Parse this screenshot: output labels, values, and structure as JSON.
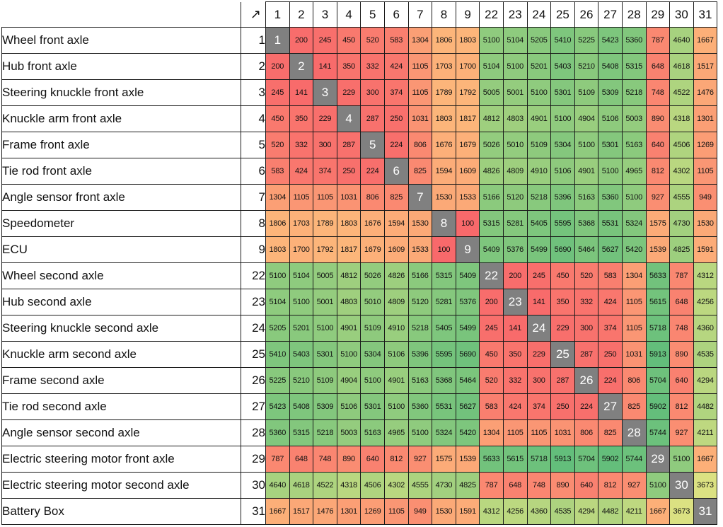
{
  "chart_data": {
    "type": "heatmap",
    "title": "",
    "corner_symbol": "↗",
    "column_ids": [
      "1",
      "2",
      "3",
      "4",
      "5",
      "6",
      "7",
      "8",
      "9",
      "22",
      "23",
      "24",
      "25",
      "26",
      "27",
      "28",
      "29",
      "30",
      "31"
    ],
    "rows": [
      {
        "label": "Wheel front axle",
        "id": "1"
      },
      {
        "label": "Hub front axle",
        "id": "2"
      },
      {
        "label": "Steering knuckle front axle",
        "id": "3"
      },
      {
        "label": "Knuckle arm front axle",
        "id": "4"
      },
      {
        "label": "Frame front axle",
        "id": "5"
      },
      {
        "label": "Tie rod front axle",
        "id": "6"
      },
      {
        "label": "Angle sensor front axle",
        "id": "7"
      },
      {
        "label": "Speedometer",
        "id": "8"
      },
      {
        "label": "ECU",
        "id": "9"
      },
      {
        "label": "Wheel second axle",
        "id": "22"
      },
      {
        "label": "Hub second axle",
        "id": "23"
      },
      {
        "label": "Steering knuckle second axle",
        "id": "24"
      },
      {
        "label": "Knuckle arm second axle",
        "id": "25"
      },
      {
        "label": "Frame second axle",
        "id": "26"
      },
      {
        "label": "Tie rod second axle",
        "id": "27"
      },
      {
        "label": "Angle sensor second axle",
        "id": "28"
      },
      {
        "label": "Electric steering motor front axle",
        "id": "29"
      },
      {
        "label": "Electric steering motor second axle",
        "id": "30"
      },
      {
        "label": "Battery Box",
        "id": "31"
      }
    ],
    "values": [
      [
        null,
        200,
        245,
        450,
        520,
        583,
        1304,
        1806,
        1803,
        5100,
        5104,
        5205,
        5410,
        5225,
        5423,
        5360,
        787,
        4640,
        1667
      ],
      [
        200,
        null,
        141,
        350,
        332,
        424,
        1105,
        1703,
        1700,
        5104,
        5100,
        5201,
        5403,
        5210,
        5408,
        5315,
        648,
        4618,
        1517
      ],
      [
        245,
        141,
        null,
        229,
        300,
        374,
        1105,
        1789,
        1792,
        5005,
        5001,
        5100,
        5301,
        5109,
        5309,
        5218,
        748,
        4522,
        1476
      ],
      [
        450,
        350,
        229,
        null,
        287,
        250,
        1031,
        1803,
        1817,
        4812,
        4803,
        4901,
        5100,
        4904,
        5106,
        5003,
        890,
        4318,
        1301
      ],
      [
        520,
        332,
        300,
        287,
        null,
        224,
        806,
        1676,
        1679,
        5026,
        5010,
        5109,
        5304,
        5100,
        5301,
        5163,
        640,
        4506,
        1269
      ],
      [
        583,
        424,
        374,
        250,
        224,
        null,
        825,
        1594,
        1609,
        4826,
        4809,
        4910,
        5106,
        4901,
        5100,
        4965,
        812,
        4302,
        1105
      ],
      [
        1304,
        1105,
        1105,
        1031,
        806,
        825,
        null,
        1530,
        1533,
        5166,
        5120,
        5218,
        5396,
        5163,
        5360,
        5100,
        927,
        4555,
        949
      ],
      [
        1806,
        1703,
        1789,
        1803,
        1676,
        1594,
        1530,
        null,
        100,
        5315,
        5281,
        5405,
        5595,
        5368,
        5531,
        5324,
        1575,
        4730,
        1530
      ],
      [
        1803,
        1700,
        1792,
        1817,
        1679,
        1609,
        1533,
        100,
        null,
        5409,
        5376,
        5499,
        5690,
        5464,
        5627,
        5420,
        1539,
        4825,
        1591
      ],
      [
        5100,
        5104,
        5005,
        4812,
        5026,
        4826,
        5166,
        5315,
        5409,
        null,
        200,
        245,
        450,
        520,
        583,
        1304,
        5633,
        787,
        4312
      ],
      [
        5104,
        5100,
        5001,
        4803,
        5010,
        4809,
        5120,
        5281,
        5376,
        200,
        null,
        141,
        350,
        332,
        424,
        1105,
        5615,
        648,
        4256
      ],
      [
        5205,
        5201,
        5100,
        4901,
        5109,
        4910,
        5218,
        5405,
        5499,
        245,
        141,
        null,
        229,
        300,
        374,
        1105,
        5718,
        748,
        4360
      ],
      [
        5410,
        5403,
        5301,
        5100,
        5304,
        5106,
        5396,
        5595,
        5690,
        450,
        350,
        229,
        null,
        287,
        250,
        1031,
        5913,
        890,
        4535
      ],
      [
        5225,
        5210,
        5109,
        4904,
        5100,
        4901,
        5163,
        5368,
        5464,
        520,
        332,
        300,
        287,
        null,
        224,
        806,
        5704,
        640,
        4294
      ],
      [
        5423,
        5408,
        5309,
        5106,
        5301,
        5100,
        5360,
        5531,
        5627,
        583,
        424,
        374,
        250,
        224,
        null,
        825,
        5902,
        812,
        4482
      ],
      [
        5360,
        5315,
        5218,
        5003,
        5163,
        4965,
        5100,
        5324,
        5420,
        1304,
        1105,
        1105,
        1031,
        806,
        825,
        null,
        5744,
        927,
        4211
      ],
      [
        787,
        648,
        748,
        890,
        640,
        812,
        927,
        1575,
        1539,
        5633,
        5615,
        5718,
        5913,
        5704,
        5902,
        5744,
        null,
        5100,
        1667
      ],
      [
        4640,
        4618,
        4522,
        4318,
        4506,
        4302,
        4555,
        4730,
        4825,
        787,
        648,
        748,
        890,
        640,
        812,
        927,
        5100,
        null,
        3673
      ],
      [
        1667,
        1517,
        1476,
        1301,
        1269,
        1105,
        949,
        1530,
        1591,
        4312,
        4256,
        4360,
        4535,
        4294,
        4482,
        4211,
        1667,
        3673,
        null
      ]
    ],
    "color_scale": {
      "low": "#F8696B",
      "mid": "#FFEB84",
      "high": "#63BE7B"
    },
    "diagonal_color": "#808080"
  }
}
